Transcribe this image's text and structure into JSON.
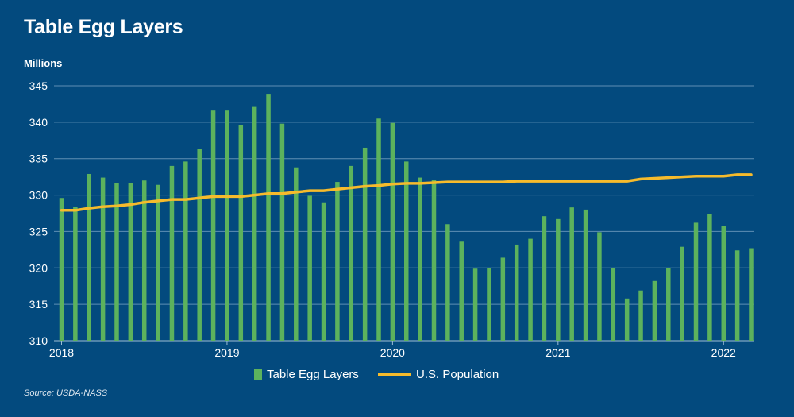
{
  "colors": {
    "background": "#034a7e",
    "bar": "#5cb25d",
    "line": "#f6bb2c",
    "grid": "#5f8fb4",
    "text": "#ffffff"
  },
  "source": "Source: USDA-NASS",
  "chart_data": {
    "type": "bar",
    "title": "Table Egg Layers",
    "ylabel": "Millions",
    "xlabel": "",
    "ylim": [
      310,
      345
    ],
    "yticks": [
      310,
      315,
      320,
      325,
      330,
      335,
      340,
      345
    ],
    "xticks": [
      {
        "label": "2018",
        "index": 0
      },
      {
        "label": "2019",
        "index": 12
      },
      {
        "label": "2020",
        "index": 24
      },
      {
        "label": "2021",
        "index": 36
      },
      {
        "label": "2022",
        "index": 48
      }
    ],
    "grid": true,
    "legend_position": "bottom",
    "x": [
      "2018-01",
      "2018-02",
      "2018-03",
      "2018-04",
      "2018-05",
      "2018-06",
      "2018-07",
      "2018-08",
      "2018-09",
      "2018-10",
      "2018-11",
      "2018-12",
      "2019-01",
      "2019-02",
      "2019-03",
      "2019-04",
      "2019-05",
      "2019-06",
      "2019-07",
      "2019-08",
      "2019-09",
      "2019-10",
      "2019-11",
      "2019-12",
      "2020-01",
      "2020-02",
      "2020-03",
      "2020-04",
      "2020-05",
      "2020-06",
      "2020-07",
      "2020-08",
      "2020-09",
      "2020-10",
      "2020-11",
      "2020-12",
      "2021-01",
      "2021-02",
      "2021-03",
      "2021-04",
      "2021-05",
      "2021-06",
      "2021-07",
      "2021-08",
      "2021-09",
      "2021-10",
      "2021-11",
      "2021-12",
      "2022-01",
      "2022-02",
      "2022-03"
    ],
    "series": [
      {
        "name": "Table Egg Layers",
        "type": "bar",
        "values": [
          329.6,
          328.4,
          332.9,
          332.4,
          331.6,
          331.6,
          332.0,
          331.4,
          334.0,
          334.6,
          336.3,
          341.6,
          341.6,
          339.6,
          342.1,
          343.9,
          339.8,
          333.8,
          329.9,
          329.0,
          331.8,
          334.0,
          336.5,
          340.5,
          339.9,
          334.6,
          332.4,
          332.1,
          326.0,
          323.6,
          319.9,
          320.0,
          321.4,
          323.2,
          324.0,
          327.1,
          326.7,
          328.3,
          328.0,
          324.9,
          320.0,
          315.8,
          316.9,
          318.2,
          320.0,
          322.9,
          326.2,
          327.4,
          325.8,
          322.4,
          322.7
        ]
      },
      {
        "name": "U.S. Population",
        "type": "line",
        "values": [
          327.9,
          327.9,
          328.2,
          328.4,
          328.5,
          328.7,
          329.0,
          329.2,
          329.4,
          329.4,
          329.6,
          329.8,
          329.8,
          329.8,
          330.0,
          330.2,
          330.2,
          330.4,
          330.6,
          330.6,
          330.8,
          331.0,
          331.2,
          331.3,
          331.5,
          331.6,
          331.6,
          331.7,
          331.8,
          331.8,
          331.8,
          331.8,
          331.8,
          331.9,
          331.9,
          331.9,
          331.9,
          331.9,
          331.9,
          331.9,
          331.9,
          331.9,
          332.2,
          332.3,
          332.4,
          332.5,
          332.6,
          332.6,
          332.6,
          332.8,
          332.8
        ]
      }
    ]
  }
}
